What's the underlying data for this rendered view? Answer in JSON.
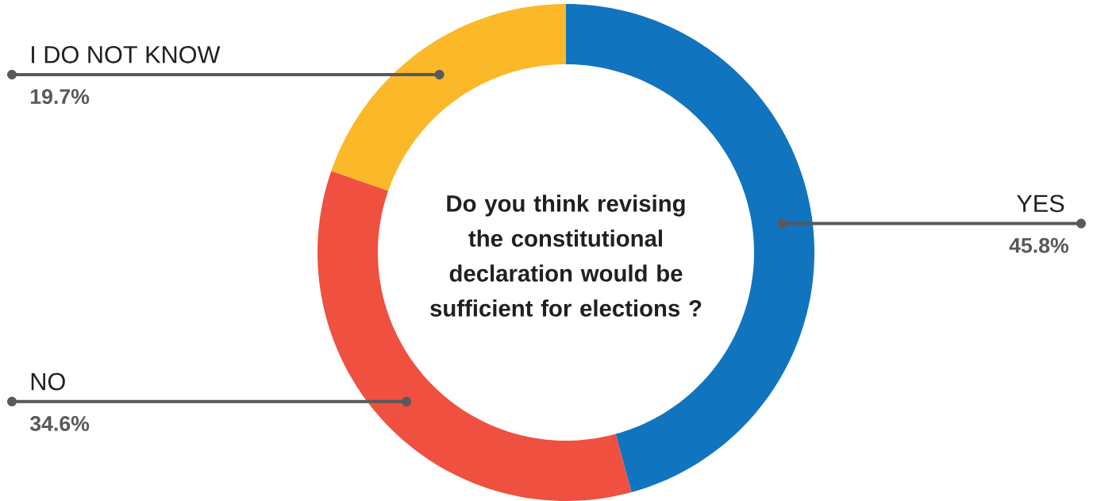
{
  "chart_data": {
    "type": "donut",
    "title": "Do you think revising the constitutional declaration would be sufficient for elections ?",
    "categories": [
      "YES",
      "NO",
      "I DO NOT KNOW"
    ],
    "values": [
      45.8,
      34.6,
      19.7
    ],
    "colors": [
      "#1174bf",
      "#ef5040",
      "#fbb829"
    ],
    "value_labels": [
      "45.8%",
      "34.6%",
      "19.7%"
    ]
  }
}
